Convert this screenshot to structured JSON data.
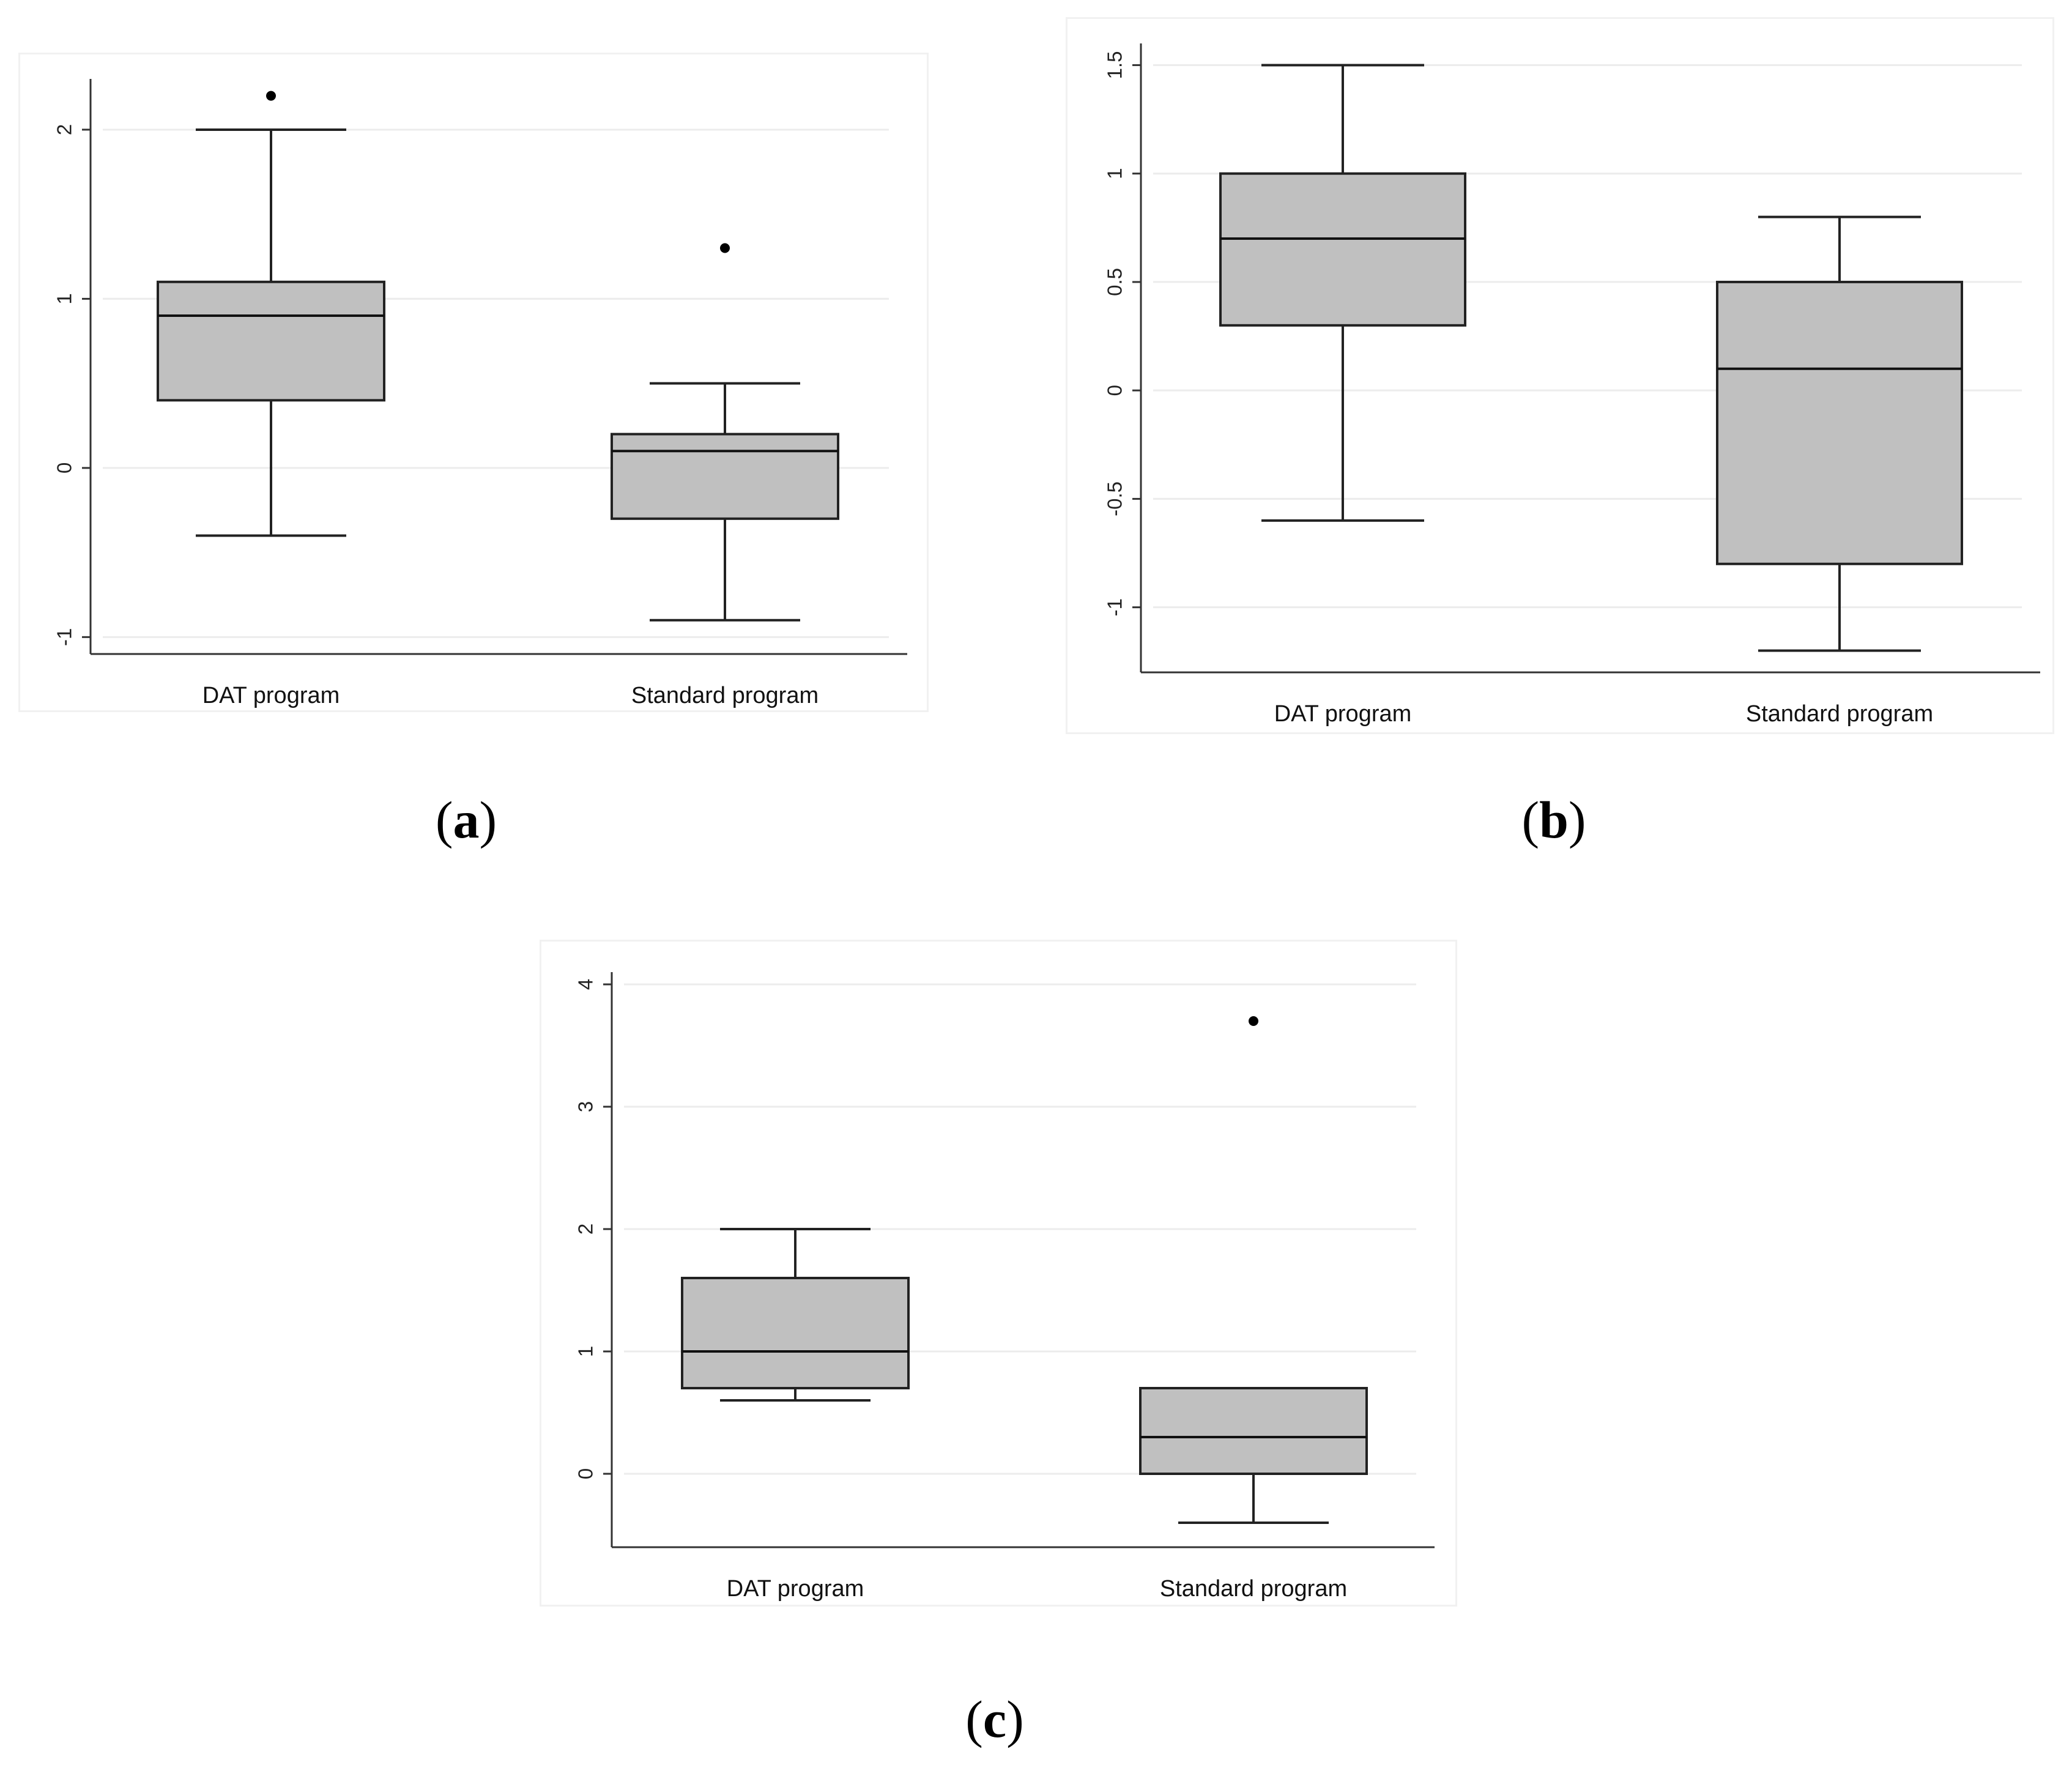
{
  "chart_data": [
    {
      "panel": "a",
      "type": "boxplot",
      "categories": [
        "DAT program",
        "Standard program"
      ],
      "y_ticks": [
        "-1",
        "0",
        "1",
        "2"
      ],
      "y_tick_values": [
        -1,
        0,
        1,
        2
      ],
      "ylim": [
        -1.1,
        2.3
      ],
      "grid": true,
      "boxes": [
        {
          "category": "DAT program",
          "whisker_low": -0.4,
          "q1": 0.4,
          "median": 0.9,
          "q3": 1.1,
          "whisker_high": 2.0,
          "outliers": [
            2.2
          ]
        },
        {
          "category": "Standard program",
          "whisker_low": -0.9,
          "q1": -0.3,
          "median": 0.1,
          "q3": 0.2,
          "whisker_high": 0.5,
          "outliers": [
            1.3
          ]
        }
      ]
    },
    {
      "panel": "b",
      "type": "boxplot",
      "categories": [
        "DAT program",
        "Standard program"
      ],
      "y_ticks": [
        "-1",
        "-0.5",
        "0",
        "0.5",
        "1",
        "1.5"
      ],
      "y_tick_values": [
        -1,
        -0.5,
        0,
        0.5,
        1,
        1.5
      ],
      "ylim": [
        -1.3,
        1.6
      ],
      "grid": true,
      "boxes": [
        {
          "category": "DAT program",
          "whisker_low": -0.6,
          "q1": 0.3,
          "median": 0.7,
          "q3": 1.0,
          "whisker_high": 1.5,
          "outliers": []
        },
        {
          "category": "Standard program",
          "whisker_low": -1.2,
          "q1": -0.8,
          "median": 0.1,
          "q3": 0.5,
          "whisker_high": 0.8,
          "outliers": []
        }
      ]
    },
    {
      "panel": "c",
      "type": "boxplot",
      "categories": [
        "DAT program",
        "Standard program"
      ],
      "y_ticks": [
        "0",
        "1",
        "2",
        "3",
        "4"
      ],
      "y_tick_values": [
        0,
        1,
        2,
        3,
        4
      ],
      "ylim": [
        -0.6,
        4.1
      ],
      "grid": true,
      "boxes": [
        {
          "category": "DAT program",
          "whisker_low": 0.6,
          "q1": 0.7,
          "median": 1.0,
          "q3": 1.6,
          "whisker_high": 2.0,
          "outliers": []
        },
        {
          "category": "Standard program",
          "whisker_low": -0.4,
          "q1": 0.0,
          "median": 0.3,
          "q3": 0.7,
          "whisker_high": 0.7,
          "outliers": [
            3.7
          ]
        }
      ]
    }
  ],
  "captions": {
    "a": "a",
    "b": "b",
    "c": "c"
  }
}
